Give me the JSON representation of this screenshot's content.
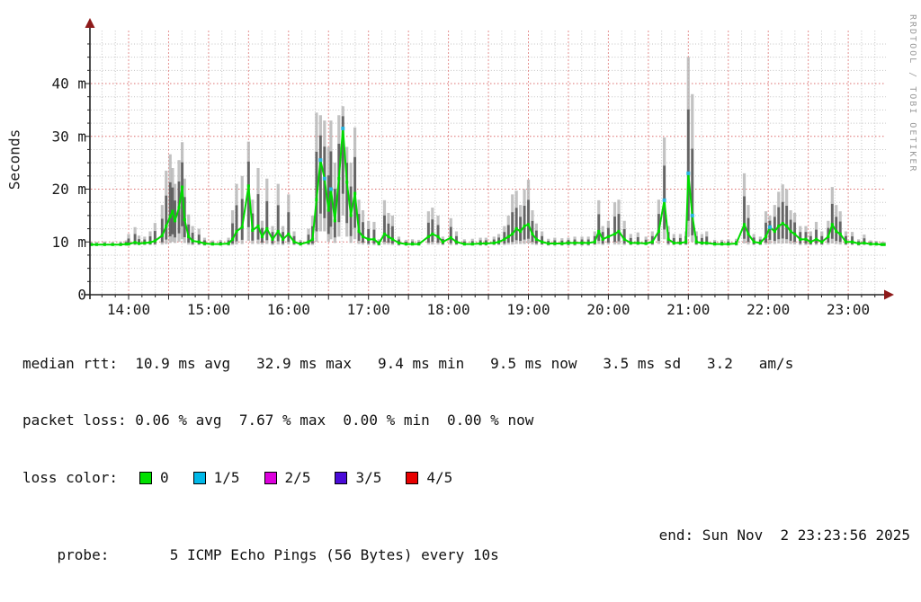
{
  "watermark": "RRDTOOL / TOBI OETIKER",
  "chart_data": {
    "type": "line",
    "subtype": "smokeping-latency",
    "title": "",
    "xlabel": "",
    "ylabel": "Seconds",
    "ylim": [
      0,
      48
    ],
    "x_domain_hours": [
      13.52,
      23.45
    ],
    "grid": {
      "on": true,
      "x_major_every_min": 30,
      "x_minor_every_min": 10,
      "y_major_every_ms": 10,
      "y_minor_every_ms": 2.5
    },
    "legend_position": "none",
    "y_ticks": [
      {
        "v": 0,
        "label": "0"
      },
      {
        "v": 10,
        "label": "10 m"
      },
      {
        "v": 20,
        "label": "20 m"
      },
      {
        "v": 30,
        "label": "30 m"
      },
      {
        "v": 40,
        "label": "40 m"
      }
    ],
    "x_ticks": [
      {
        "h": 14,
        "label": "14:00"
      },
      {
        "h": 15,
        "label": "15:00"
      },
      {
        "h": 16,
        "label": "16:00"
      },
      {
        "h": 17,
        "label": "17:00"
      },
      {
        "h": 18,
        "label": "18:00"
      },
      {
        "h": 19,
        "label": "19:00"
      },
      {
        "h": 20,
        "label": "20:00"
      },
      {
        "h": 21,
        "label": "21:00"
      },
      {
        "h": 22,
        "label": "22:00"
      },
      {
        "h": 23,
        "label": "23:00"
      }
    ],
    "colors": {
      "median": "#00DB00",
      "smoke_outer": "#B7B7B7",
      "smoke_inner": "#4E4E4E",
      "loss_1_5": "#29B4E0",
      "grid_major": "#DD6F6F",
      "grid_minor": "#C2C2C2",
      "axis": "#222222",
      "arrow": "#8E1A1A"
    },
    "series": [
      {
        "name": "median rtt (ms)",
        "role": "line+dots",
        "color": "#00DB00"
      },
      {
        "name": "smoke min-max (ms)",
        "role": "band",
        "color": "#B7B7B7"
      }
    ],
    "points_format": [
      "hour_decimal",
      "median_ms",
      "smoke_low_ms",
      "smoke_high_ms",
      "loss_fifths"
    ],
    "points": [
      [
        13.52,
        9.5,
        9.3,
        10.0,
        0
      ],
      [
        13.6,
        9.5,
        9.3,
        10.0,
        0
      ],
      [
        13.7,
        9.5,
        9.3,
        10.1,
        0
      ],
      [
        13.8,
        9.5,
        9.3,
        10.0,
        0
      ],
      [
        13.9,
        9.5,
        9.3,
        10.1,
        0
      ],
      [
        13.97,
        9.6,
        9.3,
        10.3,
        0
      ],
      [
        14.0,
        9.6,
        9.3,
        11.5,
        0
      ],
      [
        14.08,
        9.9,
        9.4,
        12.8,
        0
      ],
      [
        14.13,
        9.7,
        9.4,
        11.2,
        0
      ],
      [
        14.2,
        9.8,
        9.4,
        11.0,
        0
      ],
      [
        14.27,
        9.9,
        9.4,
        12.0,
        0
      ],
      [
        14.33,
        10.2,
        9.4,
        13.6,
        0
      ],
      [
        14.42,
        11.2,
        9.5,
        17.0,
        0
      ],
      [
        14.47,
        13.0,
        9.6,
        23.5,
        0
      ],
      [
        14.52,
        14.8,
        9.8,
        26.6,
        0
      ],
      [
        14.55,
        15.8,
        10.0,
        24.0,
        0
      ],
      [
        14.58,
        14.0,
        9.8,
        21.0,
        0
      ],
      [
        14.63,
        16.5,
        10.0,
        25.5,
        0
      ],
      [
        14.67,
        20.4,
        10.5,
        28.9,
        0
      ],
      [
        14.7,
        14.2,
        9.8,
        22.0,
        0
      ],
      [
        14.75,
        11.0,
        9.5,
        15.2,
        0
      ],
      [
        14.8,
        10.2,
        9.4,
        13.0,
        0
      ],
      [
        14.88,
        10.0,
        9.4,
        12.5,
        0
      ],
      [
        14.95,
        9.7,
        9.3,
        10.8,
        0
      ],
      [
        15.05,
        9.6,
        9.3,
        10.3,
        0
      ],
      [
        15.15,
        9.6,
        9.3,
        10.4,
        0
      ],
      [
        15.25,
        9.7,
        9.3,
        10.8,
        0
      ],
      [
        15.3,
        10.5,
        9.4,
        16.0,
        0
      ],
      [
        15.35,
        12.0,
        9.5,
        21.0,
        0
      ],
      [
        15.42,
        12.8,
        9.6,
        22.5,
        0
      ],
      [
        15.5,
        20.6,
        10.2,
        29.0,
        0
      ],
      [
        15.55,
        12.2,
        9.6,
        18.0,
        0
      ],
      [
        15.62,
        13.0,
        9.6,
        24.0,
        0
      ],
      [
        15.67,
        11.0,
        9.5,
        14.0,
        0
      ],
      [
        15.73,
        12.5,
        9.6,
        22.0,
        0
      ],
      [
        15.8,
        10.5,
        9.4,
        13.0,
        0
      ],
      [
        15.87,
        12.0,
        9.5,
        21.0,
        0
      ],
      [
        15.93,
        10.5,
        9.4,
        13.0,
        0
      ],
      [
        16.0,
        11.5,
        9.5,
        19.0,
        0
      ],
      [
        16.07,
        10.0,
        9.4,
        12.0,
        0
      ],
      [
        16.15,
        9.6,
        9.3,
        10.4,
        0
      ],
      [
        16.25,
        10.0,
        9.4,
        12.5,
        0
      ],
      [
        16.3,
        10.5,
        9.4,
        15.0,
        0
      ],
      [
        16.35,
        18.0,
        10.0,
        34.5,
        0
      ],
      [
        16.4,
        25.5,
        12.0,
        34.0,
        1
      ],
      [
        16.45,
        22.0,
        12.0,
        33.0,
        1
      ],
      [
        16.5,
        16.0,
        10.0,
        28.0,
        0
      ],
      [
        16.53,
        20.0,
        10.5,
        33.0,
        1
      ],
      [
        16.58,
        14.0,
        9.8,
        25.0,
        0
      ],
      [
        16.63,
        22.0,
        11.0,
        34.0,
        0
      ],
      [
        16.68,
        31.5,
        15.0,
        35.7,
        1
      ],
      [
        16.73,
        21.3,
        11.0,
        28.0,
        0
      ],
      [
        16.78,
        15.0,
        9.8,
        25.0,
        0
      ],
      [
        16.83,
        19.2,
        10.5,
        31.7,
        0
      ],
      [
        16.88,
        12.0,
        9.6,
        18.0,
        0
      ],
      [
        16.93,
        11.0,
        9.5,
        16.0,
        0
      ],
      [
        17.0,
        10.5,
        9.4,
        14.0,
        0
      ],
      [
        17.07,
        10.5,
        9.4,
        13.8,
        0
      ],
      [
        17.13,
        9.7,
        9.3,
        10.5,
        0
      ],
      [
        17.2,
        11.5,
        9.5,
        17.9,
        0
      ],
      [
        17.25,
        11.0,
        9.5,
        15.5,
        0
      ],
      [
        17.3,
        10.5,
        9.4,
        15.0,
        0
      ],
      [
        17.38,
        9.8,
        9.3,
        11.0,
        0
      ],
      [
        17.47,
        9.6,
        9.3,
        10.4,
        0
      ],
      [
        17.55,
        9.6,
        9.3,
        10.5,
        0
      ],
      [
        17.63,
        9.6,
        9.3,
        10.4,
        0
      ],
      [
        17.75,
        11.0,
        9.5,
        15.8,
        0
      ],
      [
        17.8,
        11.5,
        9.5,
        16.5,
        0
      ],
      [
        17.87,
        11.0,
        9.5,
        15.0,
        0
      ],
      [
        17.93,
        10.0,
        9.4,
        11.0,
        0
      ],
      [
        18.03,
        10.8,
        9.4,
        14.5,
        0
      ],
      [
        18.1,
        10.0,
        9.4,
        12.0,
        0
      ],
      [
        18.2,
        9.6,
        9.3,
        10.5,
        0
      ],
      [
        18.3,
        9.6,
        9.3,
        10.6,
        0
      ],
      [
        18.4,
        9.7,
        9.3,
        10.8,
        0
      ],
      [
        18.47,
        9.7,
        9.3,
        10.8,
        0
      ],
      [
        18.57,
        9.8,
        9.4,
        11.0,
        0
      ],
      [
        18.63,
        10.0,
        9.4,
        11.5,
        0
      ],
      [
        18.7,
        10.5,
        9.4,
        13.0,
        0
      ],
      [
        18.75,
        11.0,
        9.5,
        15.0,
        0
      ],
      [
        18.8,
        11.5,
        9.5,
        19.0,
        0
      ],
      [
        18.85,
        12.5,
        9.6,
        19.7,
        0
      ],
      [
        18.9,
        12.0,
        9.6,
        17.0,
        0
      ],
      [
        18.95,
        13.0,
        9.6,
        20.0,
        0
      ],
      [
        19.0,
        13.3,
        9.7,
        21.8,
        0
      ],
      [
        19.05,
        11.5,
        9.5,
        16.0,
        0
      ],
      [
        19.1,
        10.5,
        9.4,
        13.5,
        0
      ],
      [
        19.17,
        10.0,
        9.4,
        12.0,
        0
      ],
      [
        19.25,
        9.7,
        9.3,
        10.6,
        0
      ],
      [
        19.33,
        9.7,
        9.3,
        10.8,
        0
      ],
      [
        19.42,
        9.7,
        9.3,
        10.7,
        0
      ],
      [
        19.5,
        9.8,
        9.3,
        10.8,
        0
      ],
      [
        19.58,
        9.8,
        9.3,
        11.0,
        0
      ],
      [
        19.67,
        9.8,
        9.3,
        11.0,
        0
      ],
      [
        19.75,
        9.8,
        9.3,
        11.0,
        0
      ],
      [
        19.83,
        10.0,
        9.4,
        12.0,
        0
      ],
      [
        19.88,
        12.0,
        9.6,
        17.9,
        0
      ],
      [
        19.93,
        10.5,
        9.4,
        13.0,
        0
      ],
      [
        20.0,
        11.0,
        9.5,
        14.0,
        0
      ],
      [
        20.08,
        11.5,
        9.5,
        17.5,
        0
      ],
      [
        20.13,
        12.0,
        9.5,
        18.0,
        0
      ],
      [
        20.2,
        10.5,
        9.4,
        14.0,
        0
      ],
      [
        20.28,
        9.8,
        9.4,
        11.5,
        0
      ],
      [
        20.37,
        9.8,
        9.4,
        11.8,
        0
      ],
      [
        20.47,
        9.7,
        9.4,
        11.0,
        0
      ],
      [
        20.55,
        10.0,
        9.4,
        12.0,
        0
      ],
      [
        20.63,
        12.0,
        9.6,
        18.0,
        0
      ],
      [
        20.7,
        17.9,
        10.5,
        29.8,
        1
      ],
      [
        20.75,
        10.5,
        9.4,
        13.0,
        0
      ],
      [
        20.82,
        9.8,
        9.4,
        11.5,
        0
      ],
      [
        20.9,
        9.8,
        9.4,
        11.5,
        0
      ],
      [
        20.97,
        10.0,
        9.4,
        12.0,
        0
      ],
      [
        21.0,
        23.0,
        11.0,
        45.0,
        1
      ],
      [
        21.05,
        15.0,
        10.0,
        38.0,
        1
      ],
      [
        21.1,
        10.0,
        9.4,
        12.0,
        0
      ],
      [
        21.17,
        9.8,
        9.4,
        11.5,
        0
      ],
      [
        21.23,
        9.8,
        9.4,
        12.0,
        0
      ],
      [
        21.33,
        9.6,
        9.3,
        10.4,
        0
      ],
      [
        21.42,
        9.6,
        9.3,
        10.4,
        0
      ],
      [
        21.5,
        9.6,
        9.3,
        10.5,
        0
      ],
      [
        21.6,
        9.7,
        9.3,
        10.6,
        0
      ],
      [
        21.7,
        13.3,
        9.7,
        23.0,
        0
      ],
      [
        21.75,
        11.5,
        9.5,
        17.0,
        0
      ],
      [
        21.82,
        10.0,
        9.4,
        11.5,
        0
      ],
      [
        21.9,
        9.8,
        9.4,
        11.0,
        0
      ],
      [
        21.97,
        11.0,
        9.5,
        15.8,
        0
      ],
      [
        22.02,
        12.8,
        9.6,
        15.0,
        1
      ],
      [
        22.08,
        12.0,
        9.6,
        17.0,
        0
      ],
      [
        22.13,
        13.0,
        9.7,
        19.5,
        0
      ],
      [
        22.18,
        13.5,
        9.7,
        20.9,
        0
      ],
      [
        22.23,
        13.0,
        9.7,
        20.0,
        0
      ],
      [
        22.28,
        12.0,
        9.6,
        16.0,
        0
      ],
      [
        22.33,
        11.5,
        9.5,
        15.5,
        0
      ],
      [
        22.4,
        10.5,
        9.4,
        13.0,
        0
      ],
      [
        22.47,
        10.5,
        9.4,
        13.0,
        0
      ],
      [
        22.53,
        10.0,
        9.4,
        12.0,
        0
      ],
      [
        22.6,
        10.5,
        9.4,
        13.8,
        0
      ],
      [
        22.67,
        10.0,
        9.4,
        12.0,
        0
      ],
      [
        22.75,
        11.0,
        9.5,
        14.0,
        0
      ],
      [
        22.8,
        13.3,
        9.7,
        20.4,
        0
      ],
      [
        22.85,
        12.0,
        9.6,
        17.0,
        0
      ],
      [
        22.9,
        11.5,
        9.5,
        15.8,
        0
      ],
      [
        22.97,
        10.0,
        9.4,
        12.0,
        0
      ],
      [
        23.05,
        10.0,
        9.4,
        11.9,
        0
      ],
      [
        23.13,
        9.7,
        9.3,
        10.5,
        0
      ],
      [
        23.2,
        9.8,
        9.4,
        11.4,
        0
      ],
      [
        23.28,
        9.6,
        9.3,
        10.3,
        0
      ],
      [
        23.35,
        9.6,
        9.3,
        10.2,
        0
      ],
      [
        23.42,
        9.5,
        9.3,
        10.0,
        0
      ],
      [
        23.45,
        9.5,
        9.3,
        10.0,
        0
      ]
    ]
  },
  "stats": {
    "median_line": "median rtt:  10.9 ms avg   32.9 ms max   9.4 ms min   9.5 ms now   3.5 ms sd   3.2   am/s",
    "loss_line": "packet loss: 0.06 % avg  7.67 % max  0.00 % min  0.00 % now",
    "loss_color_label": "loss color:",
    "loss_items": [
      {
        "label": "0",
        "color": "#00E000"
      },
      {
        "label": "1/5",
        "color": "#00B8E8"
      },
      {
        "label": "2/5",
        "color": "#DC00DC"
      },
      {
        "label": "3/5",
        "color": "#4A0BD8"
      },
      {
        "label": "4/5",
        "color": "#E80000"
      }
    ],
    "probe_line": "probe:       5 ICMP Echo Pings (56 Bytes) every 10s",
    "end_text": "end: Sun Nov  2 23:23:56 2025"
  }
}
